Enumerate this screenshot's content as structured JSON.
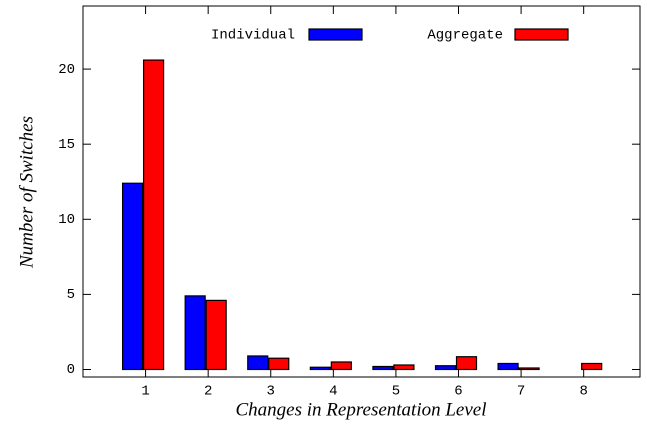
{
  "chart_data": {
    "type": "bar",
    "xlabel": "Changes in Representation Level",
    "ylabel": "Number of Switches",
    "x": [
      1,
      2,
      3,
      4,
      5,
      6,
      7,
      8
    ],
    "xlim": [
      0,
      8.9
    ],
    "xticks": [
      1,
      2,
      3,
      4,
      5,
      6,
      7,
      8
    ],
    "ylim": [
      -0.5,
      24.2
    ],
    "yticks": [
      0,
      5,
      10,
      15,
      20
    ],
    "legend": "top",
    "series": [
      {
        "name": "Individual",
        "color": "#0000ff",
        "values": [
          12.4,
          4.9,
          0.9,
          0.15,
          0.2,
          0.25,
          0.4,
          0
        ]
      },
      {
        "name": "Aggregate",
        "color": "#ff0000",
        "values": [
          20.6,
          4.6,
          0.75,
          0.5,
          0.3,
          0.85,
          0.1,
          0.4
        ]
      }
    ]
  }
}
